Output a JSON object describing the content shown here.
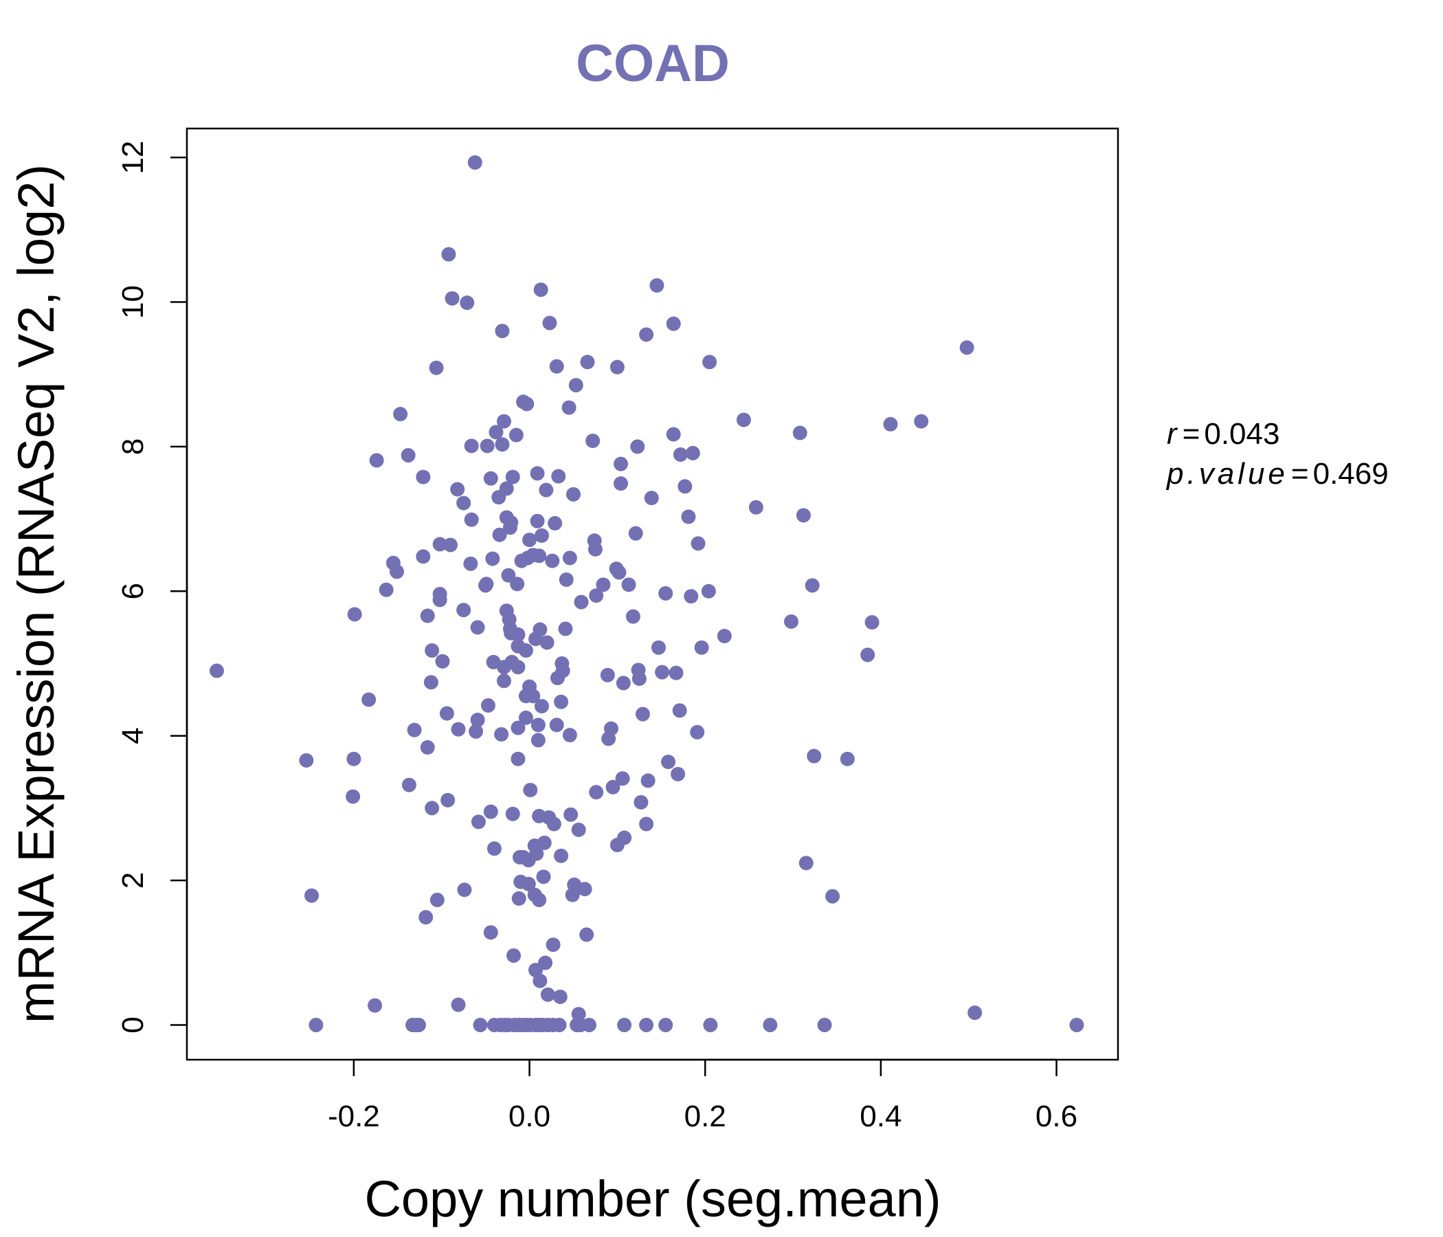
{
  "chart_data": {
    "type": "scatter",
    "title": "COAD",
    "xlabel": "Copy number (seg.mean)",
    "ylabel": "mRNA Expression (RNASeq V2, log2)",
    "xlim": [
      -0.39,
      0.67
    ],
    "ylim": [
      -0.48,
      12.4
    ],
    "x_ticks": [
      -0.2,
      0.0,
      0.2,
      0.4,
      0.6
    ],
    "x_tick_labels": [
      "-0.2",
      "0.0",
      "0.2",
      "0.4",
      "0.6"
    ],
    "y_ticks": [
      0,
      2,
      4,
      6,
      8,
      10,
      12
    ],
    "y_tick_labels": [
      "0",
      "2",
      "4",
      "6",
      "8",
      "10",
      "12"
    ],
    "point_color": "#7470b4",
    "title_color": "#7470b4",
    "stats": {
      "r_label": "r",
      "r_value": "0.043",
      "p_label": "p.value",
      "p_value": "0.469",
      "equals": "="
    },
    "points": [
      [
        -0.356,
        4.9
      ],
      [
        -0.254,
        3.66
      ],
      [
        -0.248,
        1.79
      ],
      [
        -0.243,
        0.0
      ],
      [
        -0.199,
        5.68
      ],
      [
        -0.2,
        3.68
      ],
      [
        -0.201,
        3.16
      ],
      [
        -0.183,
        4.5
      ],
      [
        -0.176,
        0.27
      ],
      [
        -0.174,
        7.81
      ],
      [
        -0.163,
        6.02
      ],
      [
        -0.155,
        6.39
      ],
      [
        -0.151,
        6.27
      ],
      [
        -0.147,
        8.45
      ],
      [
        -0.138,
        7.88
      ],
      [
        -0.137,
        3.32
      ],
      [
        -0.133,
        0.0
      ],
      [
        -0.129,
        0.0
      ],
      [
        -0.131,
        4.08
      ],
      [
        -0.126,
        0.0
      ],
      [
        -0.121,
        7.58
      ],
      [
        -0.121,
        6.48
      ],
      [
        -0.118,
        1.49
      ],
      [
        -0.116,
        5.66
      ],
      [
        -0.116,
        3.84
      ],
      [
        -0.111,
        5.18
      ],
      [
        -0.112,
        4.74
      ],
      [
        -0.111,
        3.0
      ],
      [
        -0.106,
        9.09
      ],
      [
        -0.105,
        1.73
      ],
      [
        -0.102,
        6.65
      ],
      [
        -0.102,
        5.96
      ],
      [
        -0.102,
        5.88
      ],
      [
        -0.099,
        5.03
      ],
      [
        -0.094,
        4.31
      ],
      [
        -0.093,
        3.11
      ],
      [
        -0.092,
        10.66
      ],
      [
        -0.09,
        6.64
      ],
      [
        -0.088,
        10.05
      ],
      [
        -0.081,
        4.09
      ],
      [
        -0.082,
        7.41
      ],
      [
        -0.081,
        0.28
      ],
      [
        -0.075,
        7.22
      ],
      [
        -0.075,
        5.74
      ],
      [
        -0.074,
        1.87
      ],
      [
        -0.071,
        9.99
      ],
      [
        -0.067,
        6.38
      ],
      [
        -0.066,
        8.01
      ],
      [
        -0.066,
        6.99
      ],
      [
        -0.062,
        11.93
      ],
      [
        -0.061,
        4.06
      ],
      [
        -0.059,
        5.5
      ],
      [
        -0.059,
        4.22
      ],
      [
        -0.058,
        2.81
      ],
      [
        -0.056,
        0.0
      ],
      [
        -0.05,
        6.08
      ],
      [
        -0.049,
        6.1
      ],
      [
        -0.048,
        8.01
      ],
      [
        -0.047,
        4.42
      ],
      [
        -0.044,
        7.56
      ],
      [
        -0.044,
        2.95
      ],
      [
        -0.044,
        1.28
      ],
      [
        -0.042,
        6.45
      ],
      [
        -0.041,
        5.02
      ],
      [
        -0.04,
        2.44
      ],
      [
        -0.04,
        0.0
      ],
      [
        -0.038,
        8.2
      ],
      [
        -0.035,
        7.3
      ],
      [
        -0.034,
        6.78
      ],
      [
        -0.033,
        0.0
      ],
      [
        -0.031,
        9.6
      ],
      [
        -0.031,
        8.03
      ],
      [
        -0.032,
        4.02
      ],
      [
        -0.029,
        8.35
      ],
      [
        -0.029,
        4.95
      ],
      [
        -0.029,
        4.76
      ],
      [
        -0.028,
        0.0
      ],
      [
        -0.026,
        7.42
      ],
      [
        -0.026,
        7.02
      ],
      [
        -0.026,
        5.73
      ],
      [
        -0.024,
        6.22
      ],
      [
        -0.023,
        5.61
      ],
      [
        -0.024,
        0.0
      ],
      [
        -0.022,
        6.88
      ],
      [
        -0.021,
        6.95
      ],
      [
        -0.022,
        5.48
      ],
      [
        -0.021,
        5.42
      ],
      [
        -0.02,
        5.02
      ],
      [
        -0.019,
        7.58
      ],
      [
        -0.019,
        2.92
      ],
      [
        -0.018,
        0.96
      ],
      [
        -0.017,
        0.0
      ],
      [
        -0.015,
        8.16
      ],
      [
        -0.014,
        6.1
      ],
      [
        -0.013,
        5.4
      ],
      [
        -0.013,
        5.24
      ],
      [
        -0.013,
        4.95
      ],
      [
        -0.013,
        4.11
      ],
      [
        -0.013,
        3.68
      ],
      [
        -0.011,
        2.32
      ],
      [
        -0.012,
        1.75
      ],
      [
        -0.012,
        0.0
      ],
      [
        -0.011,
        0.0
      ],
      [
        -0.01,
        1.98
      ],
      [
        -0.009,
        6.42
      ],
      [
        -0.007,
        8.62
      ],
      [
        -0.007,
        2.32
      ],
      [
        -0.006,
        0.0
      ],
      [
        -0.004,
        5.18
      ],
      [
        -0.004,
        4.55
      ],
      [
        -0.004,
        4.25
      ],
      [
        -0.003,
        8.59
      ],
      [
        -0.003,
        0.0
      ],
      [
        -0.002,
        6.46
      ],
      [
        -0.001,
        2.28
      ],
      [
        -0.001,
        1.95
      ],
      [
        0.0,
        6.71
      ],
      [
        0.0,
        4.68
      ],
      [
        0.001,
        3.25
      ],
      [
        0.001,
        0.0
      ],
      [
        0.004,
        6.5
      ],
      [
        0.004,
        4.55
      ],
      [
        0.006,
        2.48
      ],
      [
        0.006,
        1.8
      ],
      [
        0.007,
        0.76
      ],
      [
        0.007,
        0.0
      ],
      [
        0.007,
        5.34
      ],
      [
        0.008,
        2.37
      ],
      [
        0.009,
        7.63
      ],
      [
        0.009,
        6.97
      ],
      [
        0.009,
        0.0
      ],
      [
        0.01,
        4.15
      ],
      [
        0.01,
        3.94
      ],
      [
        0.011,
        6.49
      ],
      [
        0.011,
        2.89
      ],
      [
        0.011,
        1.73
      ],
      [
        0.012,
        5.47
      ],
      [
        0.012,
        0.61
      ],
      [
        0.012,
        0.0
      ],
      [
        0.013,
        10.17
      ],
      [
        0.014,
        4.41
      ],
      [
        0.014,
        6.77
      ],
      [
        0.015,
        0.0
      ],
      [
        0.016,
        2.05
      ],
      [
        0.017,
        2.52
      ],
      [
        0.018,
        0.86
      ],
      [
        0.019,
        7.4
      ],
      [
        0.02,
        5.29
      ],
      [
        0.021,
        0.0
      ],
      [
        0.021,
        0.42
      ],
      [
        0.022,
        2.87
      ],
      [
        0.023,
        9.71
      ],
      [
        0.026,
        6.42
      ],
      [
        0.027,
        0.0
      ],
      [
        0.027,
        1.11
      ],
      [
        0.028,
        2.78
      ],
      [
        0.029,
        6.94
      ],
      [
        0.031,
        9.11
      ],
      [
        0.032,
        4.8
      ],
      [
        0.031,
        4.15
      ],
      [
        0.033,
        7.59
      ],
      [
        0.034,
        0.0
      ],
      [
        0.035,
        0.39
      ],
      [
        0.036,
        2.34
      ],
      [
        0.036,
        4.47
      ],
      [
        0.037,
        5.0
      ],
      [
        0.038,
        4.9
      ],
      [
        0.041,
        5.48
      ],
      [
        0.042,
        6.16
      ],
      [
        0.045,
        8.54
      ],
      [
        0.046,
        6.46
      ],
      [
        0.046,
        4.01
      ],
      [
        0.047,
        2.91
      ],
      [
        0.049,
        1.8
      ],
      [
        0.05,
        7.34
      ],
      [
        0.051,
        1.94
      ],
      [
        0.053,
        8.85
      ],
      [
        0.054,
        0.0
      ],
      [
        0.056,
        0.15
      ],
      [
        0.056,
        2.7
      ],
      [
        0.058,
        0.0
      ],
      [
        0.059,
        5.85
      ],
      [
        0.063,
        1.88
      ],
      [
        0.066,
        9.17
      ],
      [
        0.065,
        1.25
      ],
      [
        0.068,
        0.0
      ],
      [
        0.072,
        8.08
      ],
      [
        0.074,
        6.7
      ],
      [
        0.075,
        6.58
      ],
      [
        0.076,
        5.94
      ],
      [
        0.076,
        3.22
      ],
      [
        0.084,
        6.09
      ],
      [
        0.089,
        4.84
      ],
      [
        0.09,
        3.96
      ],
      [
        0.093,
        4.1
      ],
      [
        0.095,
        3.29
      ],
      [
        0.099,
        6.31
      ],
      [
        0.1,
        9.1
      ],
      [
        0.1,
        2.49
      ],
      [
        0.102,
        6.26
      ],
      [
        0.104,
        7.76
      ],
      [
        0.104,
        7.49
      ],
      [
        0.106,
        3.41
      ],
      [
        0.107,
        4.73
      ],
      [
        0.108,
        2.59
      ],
      [
        0.108,
        0.0
      ],
      [
        0.113,
        6.09
      ],
      [
        0.118,
        5.65
      ],
      [
        0.121,
        6.8
      ],
      [
        0.123,
        8.0
      ],
      [
        0.124,
        4.91
      ],
      [
        0.125,
        4.79
      ],
      [
        0.127,
        3.08
      ],
      [
        0.129,
        4.3
      ],
      [
        0.133,
        9.55
      ],
      [
        0.133,
        2.78
      ],
      [
        0.133,
        0.0
      ],
      [
        0.135,
        3.38
      ],
      [
        0.139,
        7.29
      ],
      [
        0.145,
        10.23
      ],
      [
        0.147,
        5.22
      ],
      [
        0.151,
        4.88
      ],
      [
        0.155,
        5.97
      ],
      [
        0.155,
        0.0
      ],
      [
        0.158,
        3.64
      ],
      [
        0.164,
        8.17
      ],
      [
        0.164,
        9.7
      ],
      [
        0.167,
        4.87
      ],
      [
        0.169,
        3.47
      ],
      [
        0.171,
        4.35
      ],
      [
        0.172,
        7.89
      ],
      [
        0.177,
        7.45
      ],
      [
        0.181,
        7.03
      ],
      [
        0.184,
        5.93
      ],
      [
        0.186,
        7.91
      ],
      [
        0.192,
        6.66
      ],
      [
        0.191,
        4.05
      ],
      [
        0.196,
        5.22
      ],
      [
        0.205,
        9.17
      ],
      [
        0.204,
        6.0
      ],
      [
        0.206,
        0.0
      ],
      [
        0.222,
        5.38
      ],
      [
        0.244,
        8.37
      ],
      [
        0.258,
        7.16
      ],
      [
        0.274,
        0.0
      ],
      [
        0.298,
        5.58
      ],
      [
        0.308,
        8.19
      ],
      [
        0.312,
        7.05
      ],
      [
        0.315,
        2.24
      ],
      [
        0.322,
        6.08
      ],
      [
        0.324,
        3.72
      ],
      [
        0.336,
        0.0
      ],
      [
        0.345,
        1.78
      ],
      [
        0.362,
        3.68
      ],
      [
        0.385,
        5.12
      ],
      [
        0.39,
        5.57
      ],
      [
        0.411,
        8.31
      ],
      [
        0.446,
        8.35
      ],
      [
        0.498,
        9.37
      ],
      [
        0.507,
        0.17
      ],
      [
        0.623,
        0.0
      ]
    ]
  }
}
